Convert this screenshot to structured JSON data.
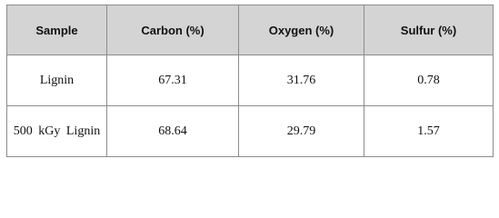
{
  "table": {
    "header": [
      "Sample",
      "Carbon (%)",
      "Oxygen (%)",
      "Sulfur (%)"
    ],
    "rows": [
      [
        "Lignin",
        "67.31",
        "31.76",
        "0.78"
      ],
      [
        "500 kGy Lignin",
        "68.64",
        "29.79",
        "1.57"
      ]
    ]
  }
}
